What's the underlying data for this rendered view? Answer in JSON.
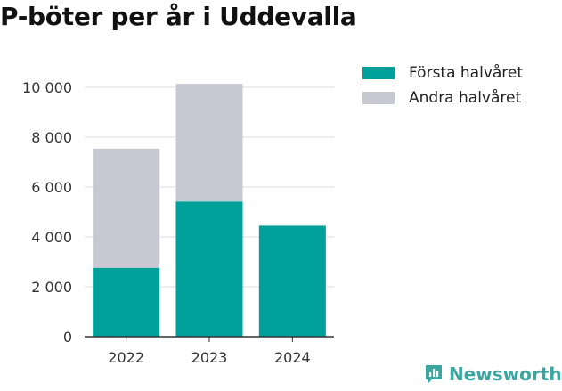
{
  "title": "P-böter per år i Uddevalla",
  "brand": {
    "name": "Newsworthy",
    "icon": "newsworthy-logo-icon",
    "color": "#3ba59f"
  },
  "chart_data": {
    "type": "bar",
    "stacked": true,
    "title": "P-böter per år i Uddevalla",
    "categories": [
      "2022",
      "2023",
      "2024"
    ],
    "series": [
      {
        "name": "Första halvåret",
        "color": "#00a19a",
        "values": [
          2760,
          5420,
          4450
        ]
      },
      {
        "name": "Andra halvåret",
        "color": "#c8c8d2",
        "values": [
          4780,
          4720,
          0
        ]
      }
    ],
    "ylim": [
      0,
      10000
    ],
    "yticks": [
      0,
      2000,
      4000,
      6000,
      8000,
      10000
    ],
    "ytick_labels": [
      "0",
      "2 000",
      "4 000",
      "6 000",
      "8 000",
      "10 000"
    ],
    "grid": true,
    "legend_position": "top-right",
    "xlabel": "",
    "ylabel": ""
  }
}
